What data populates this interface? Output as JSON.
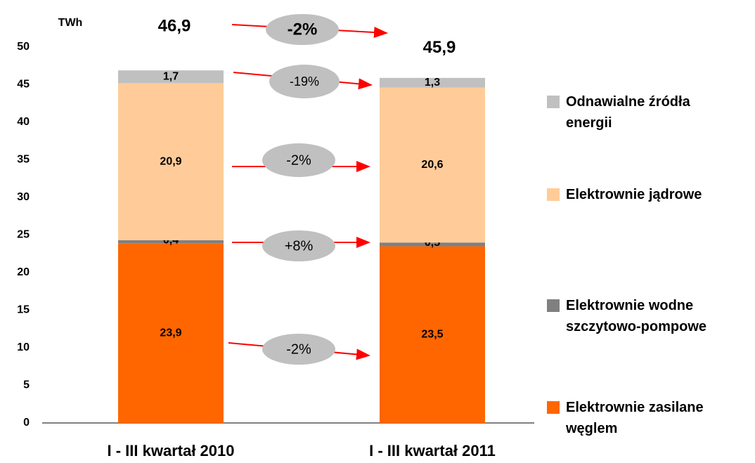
{
  "chart_data": {
    "type": "stacked-bar",
    "unit": "TWh",
    "categories": [
      "I - III kwartał 2010",
      "I - III kwartał 2011"
    ],
    "series": [
      {
        "name": "Elektrownie zasilane węglem",
        "color": "#ff6600",
        "values": [
          23.9,
          23.5
        ],
        "value_labels": [
          "23,9",
          "23,5"
        ]
      },
      {
        "name": "Elektrownie wodne szczytowo-pompowe",
        "color": "#808080",
        "values": [
          0.4,
          0.5
        ],
        "value_labels": [
          "0,4",
          "0,5"
        ]
      },
      {
        "name": "Elektrownie jądrowe",
        "color": "#ffcc99",
        "values": [
          20.9,
          20.6
        ],
        "value_labels": [
          "20,9",
          "20,6"
        ]
      },
      {
        "name": "Odnawialne źródła energii",
        "color": "#c0c0c0",
        "values": [
          1.7,
          1.3
        ],
        "value_labels": [
          "1,7",
          "1,3"
        ]
      }
    ],
    "totals": {
      "values": [
        46.9,
        45.9
      ],
      "value_labels": [
        "46,9",
        "45,9"
      ]
    },
    "changes": [
      "-2%",
      "-19%",
      "-2%",
      "+8%",
      "-2%"
    ],
    "ylim": [
      0,
      50
    ],
    "yticks": [
      0,
      5,
      10,
      15,
      20,
      25,
      30,
      35,
      40,
      45,
      50
    ],
    "grid": false,
    "legend": "right"
  }
}
